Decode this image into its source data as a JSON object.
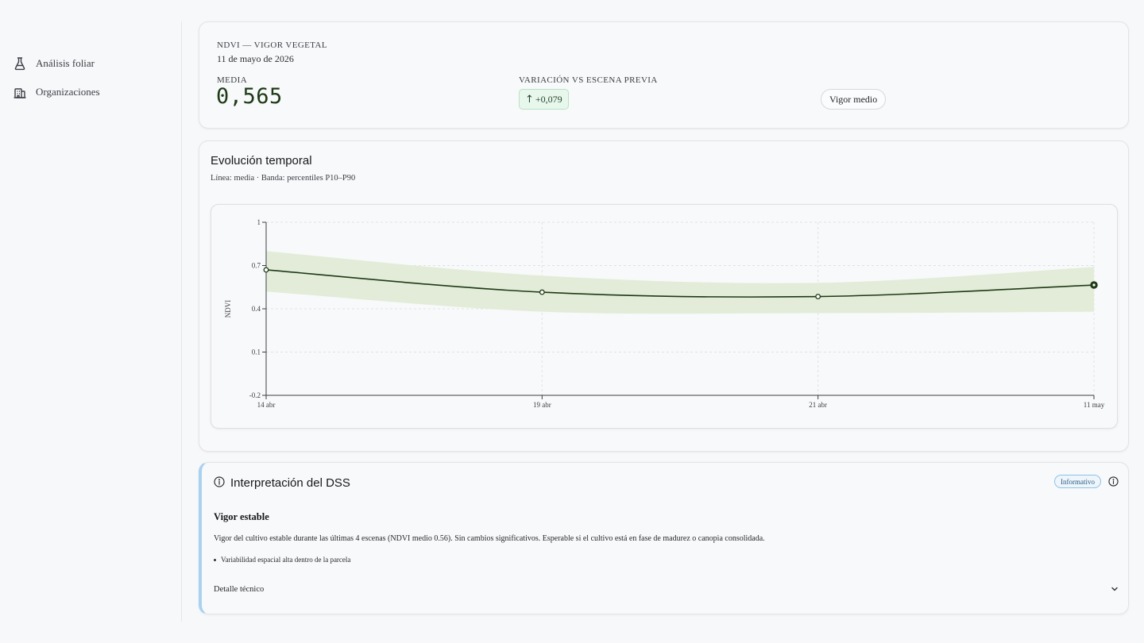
{
  "sidebar": {
    "items": [
      {
        "label": "Análisis foliar",
        "icon": "flask-icon"
      },
      {
        "label": "Organizaciones",
        "icon": "building-icon"
      }
    ]
  },
  "summary": {
    "title": "NDVI — VIGOR VEGETAL",
    "date": "11 de mayo de 2026",
    "mean_label": "MEDIA",
    "mean_value": "0,565",
    "variation_label": "VARIACIÓN VS ESCENA PREVIA",
    "variation_value": "+0,079",
    "variation_arrow": "↑",
    "vigor_label": "Vigor medio",
    "colors": {
      "positive_bg": "#e8f7ec",
      "positive_border": "#b8e1c4"
    }
  },
  "evolution": {
    "title": "Evolución temporal",
    "subtitle": "Línea: media · Banda: percentiles P10–P90"
  },
  "chart_data": {
    "type": "line",
    "x": [
      "14 abr",
      "19 abr",
      "21 abr",
      "11 may"
    ],
    "series": [
      {
        "values": [
          0.67,
          0.515,
          0.485,
          0.565
        ]
      }
    ],
    "band": {
      "p10": [
        0.52,
        0.38,
        0.37,
        0.38
      ],
      "p90": [
        0.8,
        0.63,
        0.58,
        0.69
      ]
    },
    "ylabel": "NDVI",
    "ylim": [
      -0.2,
      1
    ],
    "yticks": [
      "1",
      "0.7",
      "0.4",
      "0.1",
      "-0.2"
    ],
    "ytick_values": [
      1,
      0.7,
      0.4,
      0.1,
      -0.2
    ],
    "grid": true,
    "line_color": "#1e3a17",
    "band_color": "#e3ecd8"
  },
  "interpretation": {
    "title": "Interpretación del DSS",
    "badge": "Informativo",
    "heading": "Vigor estable",
    "body": "Vigor del cultivo estable durante las últimas 4 escenas (NDVI medio 0.56). Sin cambios significativos. Esperable si el cultivo está en fase de madurez o canopia consolidada.",
    "bullets": [
      "Variabilidad espacial alta dentro de la parcela"
    ],
    "detail_label": "Detalle técnico"
  }
}
